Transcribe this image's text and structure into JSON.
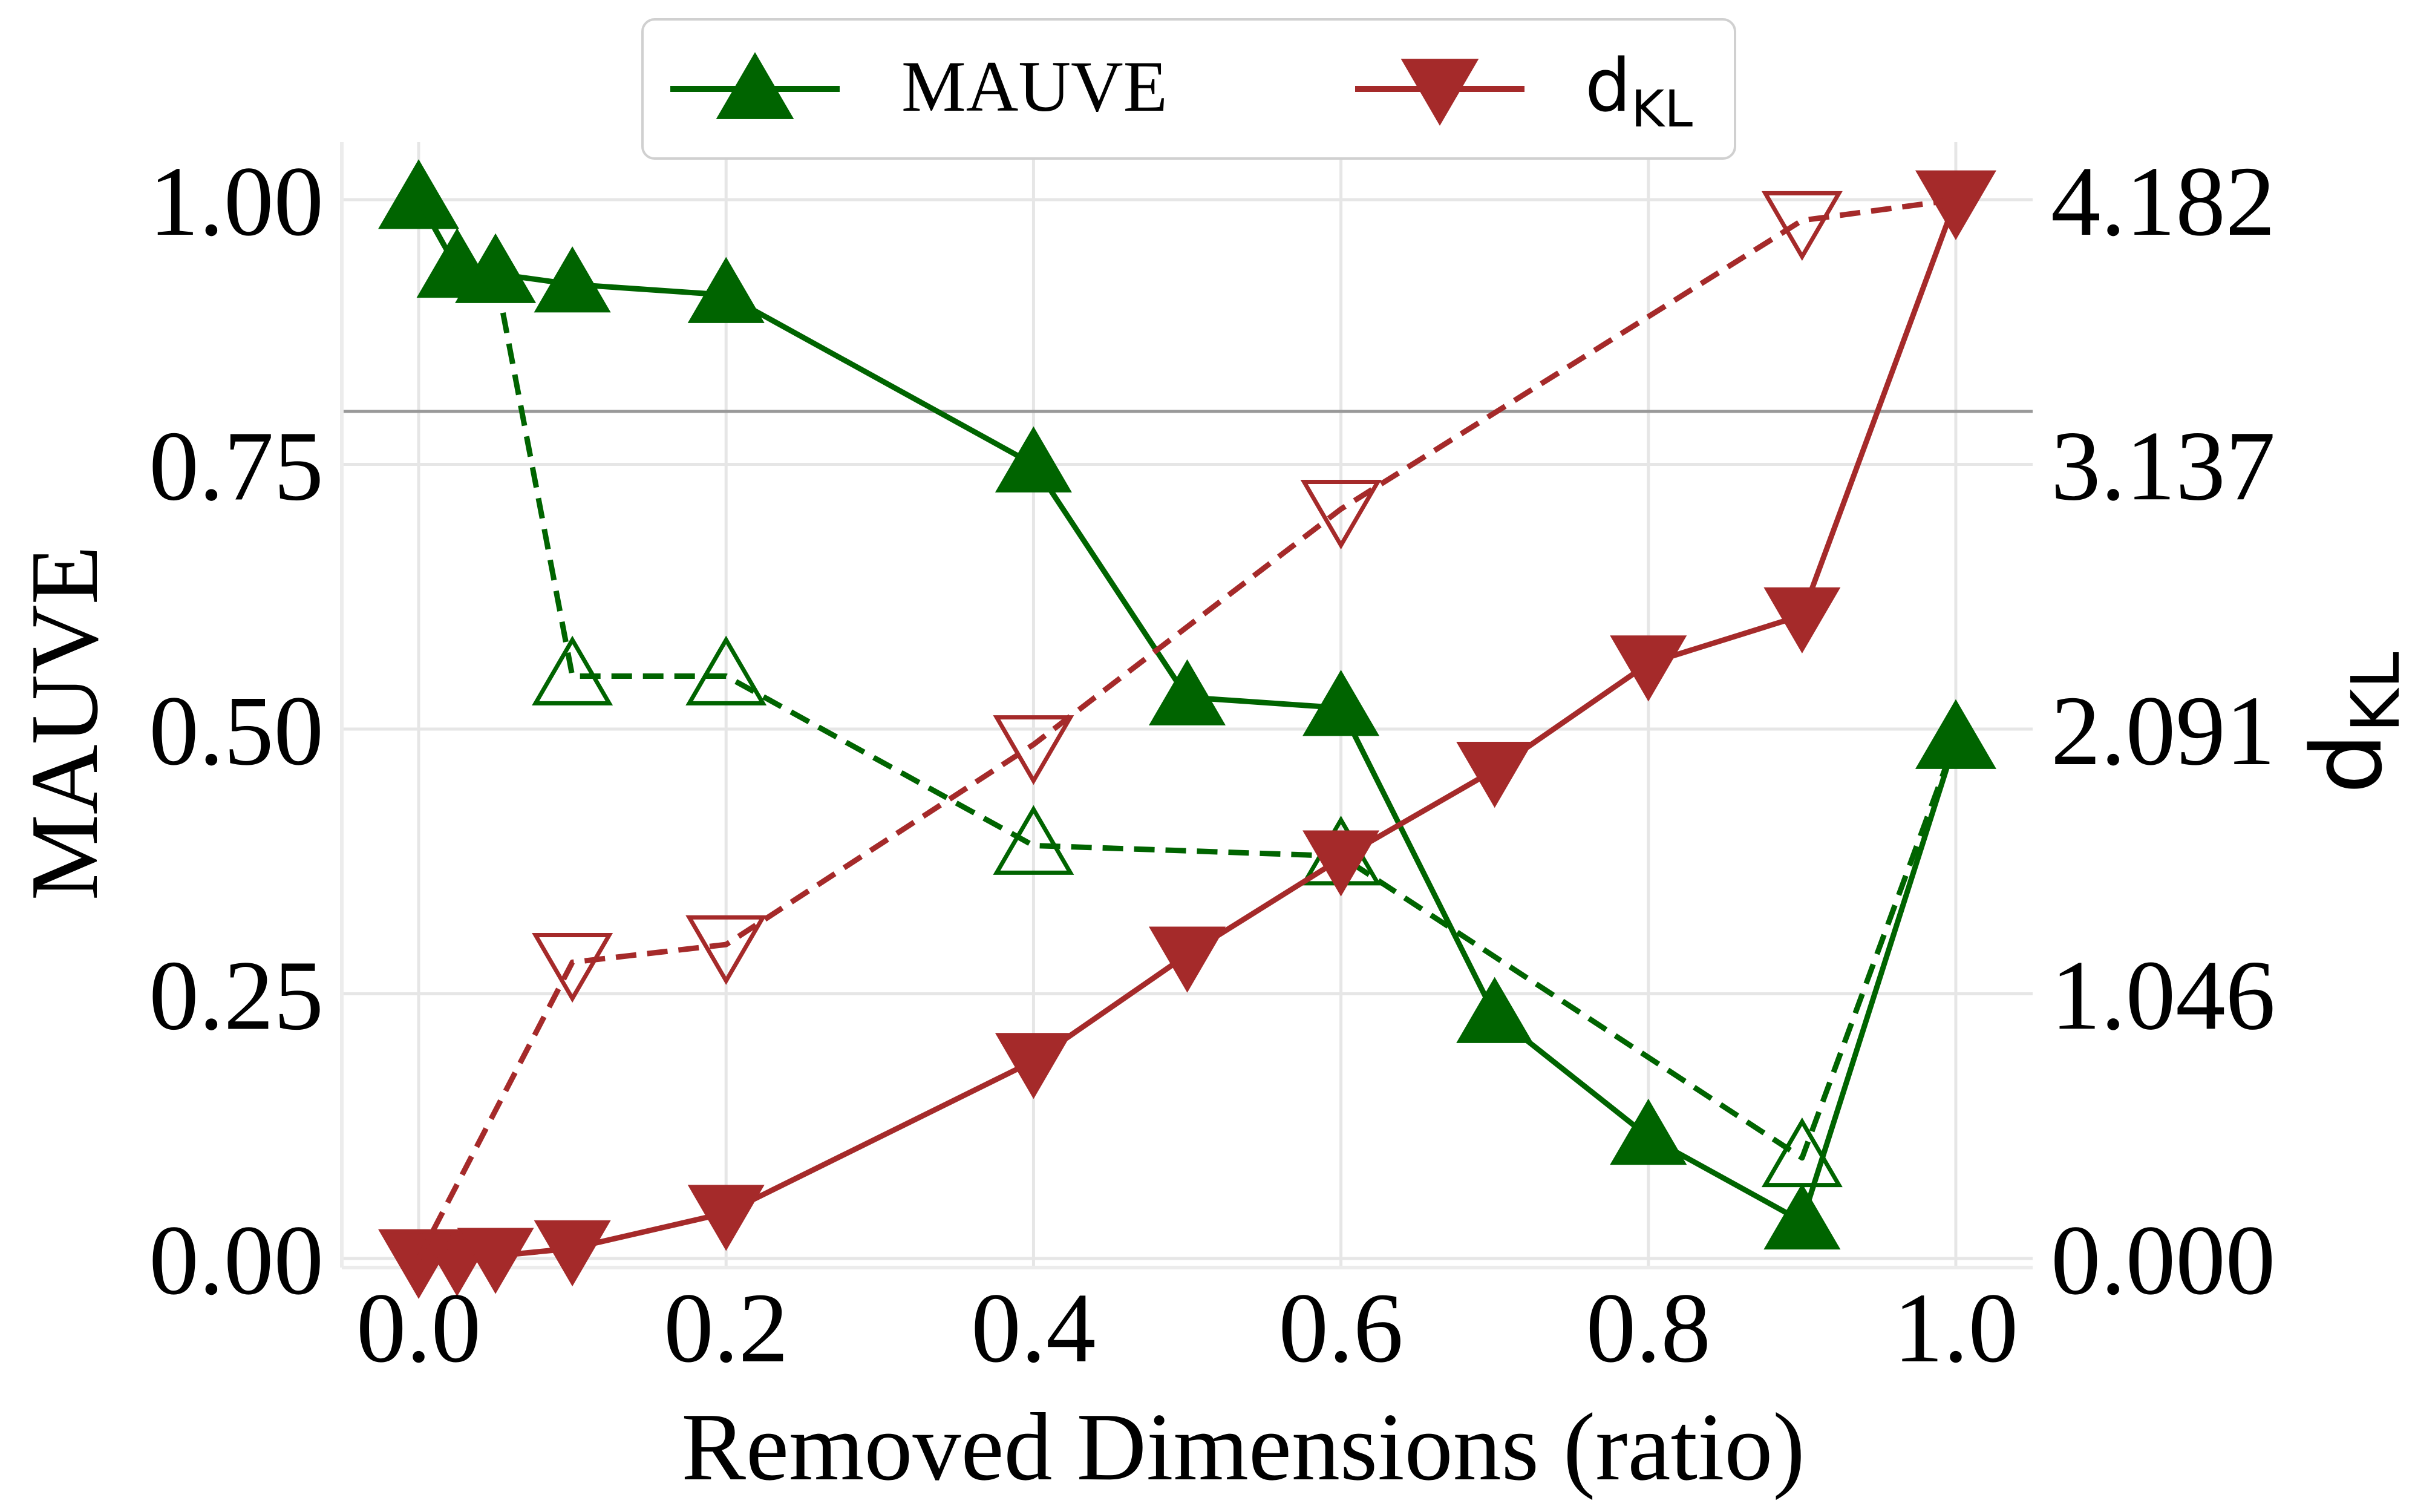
{
  "chart_data": {
    "type": "line",
    "x": [
      0.0,
      0.025,
      0.05,
      0.1,
      0.2,
      0.4,
      0.5,
      0.6,
      0.7,
      0.8,
      0.9,
      1.0
    ],
    "xlabel": "Removed Dimensions (ratio)",
    "ylabel_left": "MAUVE",
    "ylabel_right_base": "d",
    "ylabel_right_sub": "KL",
    "xlim": [
      -0.05,
      1.05
    ],
    "ylim_left": [
      0.0,
      1.0
    ],
    "ylim_right": [
      0.0,
      4.182
    ],
    "xticks": [
      "0.0",
      "0.2",
      "0.4",
      "0.6",
      "0.8",
      "1.0"
    ],
    "yticks_left": [
      "0.00",
      "0.25",
      "0.50",
      "0.75",
      "1.00"
    ],
    "yticks_right": [
      "0.000",
      "1.046",
      "2.091",
      "3.137",
      "4.182"
    ],
    "reference_line_left_value": 0.8,
    "grid": true,
    "legend_position": "top-center",
    "series": [
      {
        "name": "MAUVE",
        "axis": "left",
        "style": "solid",
        "marker": "triangle-up-filled",
        "color": "#006400",
        "values": [
          1.0,
          0.935,
          0.93,
          0.92,
          0.91,
          0.75,
          0.53,
          0.52,
          0.23,
          0.115,
          0.035,
          0.49
        ]
      },
      {
        "axis": "left",
        "style": "dashed",
        "marker": "triangle-up-open",
        "color": "#006400",
        "values": [
          1.0,
          0.935,
          0.93,
          0.55,
          0.55,
          0.39,
          null,
          0.38,
          null,
          null,
          0.095,
          0.49
        ]
      },
      {
        "name": "d_KL",
        "axis": "right",
        "style": "solid",
        "marker": "triangle-down-filled",
        "color": "#A52A2A",
        "values": [
          0.0,
          0.0,
          0.01,
          0.04,
          0.18,
          0.78,
          1.2,
          1.58,
          1.93,
          2.35,
          2.54,
          4.182
        ]
      },
      {
        "axis": "right",
        "style": "dashed",
        "marker": "triangle-down-open",
        "color": "#A52A2A",
        "values": [
          0.0,
          null,
          null,
          1.17,
          1.24,
          2.03,
          null,
          2.96,
          null,
          null,
          4.1,
          4.182
        ]
      }
    ]
  },
  "legend": {
    "mauve_label": "MAUVE",
    "dkl_base": "d",
    "dkl_sub": "KL"
  }
}
